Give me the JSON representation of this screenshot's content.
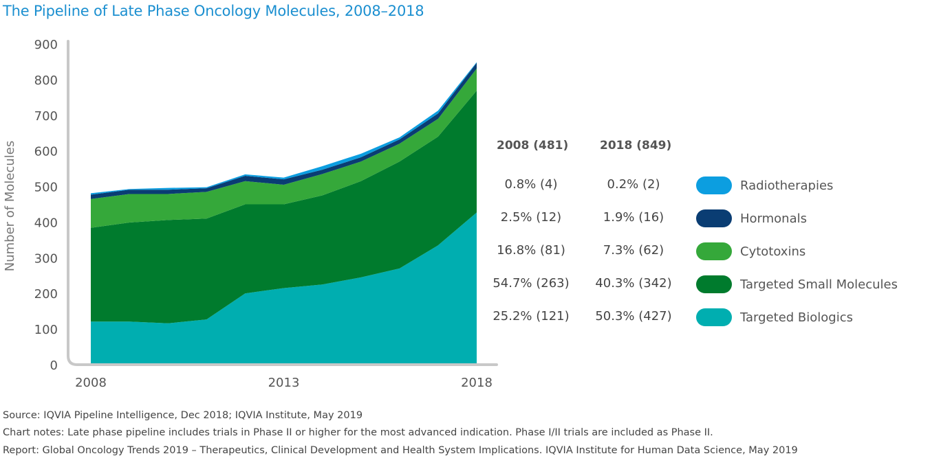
{
  "title": "The Pipeline of Late Phase Oncology Molecules, 2008–2018",
  "chart_data": {
    "type": "area",
    "stacked": true,
    "title": "The Pipeline of Late Phase Oncology Molecules, 2008–2018",
    "ylabel": "Number of Molecules",
    "xlabel": "",
    "ylim": [
      0,
      900
    ],
    "yticks": [
      0,
      100,
      200,
      300,
      400,
      500,
      600,
      700,
      800,
      900
    ],
    "xtick_labels": [
      "2008",
      "2013",
      "2018"
    ],
    "x": [
      2008,
      2009,
      2010,
      2011,
      2012,
      2013,
      2014,
      2015,
      2016,
      2017,
      2018
    ],
    "series": [
      {
        "name": "Targeted Biologics",
        "color": "#00aeb0",
        "values": [
          121,
          121,
          116,
          127,
          200,
          215,
          225,
          245,
          270,
          335,
          427
        ]
      },
      {
        "name": "Targeted Small Molecules",
        "color": "#007b2d",
        "values": [
          263,
          278,
          290,
          283,
          250,
          235,
          250,
          270,
          300,
          305,
          342
        ]
      },
      {
        "name": "Cytotoxins",
        "color": "#35a83a",
        "values": [
          81,
          80,
          73,
          75,
          65,
          55,
          60,
          55,
          50,
          50,
          62
        ]
      },
      {
        "name": "Hormonals",
        "color": "#0a3d73",
        "values": [
          12,
          12,
          12,
          10,
          15,
          15,
          12,
          12,
          12,
          15,
          16
        ]
      },
      {
        "name": "Radiotherapies",
        "color": "#0c9ee0",
        "values": [
          4,
          2,
          5,
          3,
          4,
          5,
          10,
          10,
          6,
          8,
          2
        ]
      }
    ],
    "grid": false,
    "legend": "right"
  },
  "table": {
    "headers": [
      "2008 (481)",
      "2018 (849)"
    ],
    "rows": [
      {
        "c2008": "0.8% (4)",
        "c2018": "0.2% (2)",
        "label": "Radiotherapies",
        "color": "#0c9ee0"
      },
      {
        "c2008": "2.5% (12)",
        "c2018": "1.9% (16)",
        "label": "Hormonals",
        "color": "#0a3d73"
      },
      {
        "c2008": "16.8% (81)",
        "c2018": "7.3% (62)",
        "label": "Cytotoxins",
        "color": "#35a83a"
      },
      {
        "c2008": "54.7% (263)",
        "c2018": "40.3% (342)",
        "label": "Targeted Small Molecules",
        "color": "#007b2d"
      },
      {
        "c2008": "25.2% (121)",
        "c2018": "50.3% (427)",
        "label": "Targeted Biologics",
        "color": "#00aeb0"
      }
    ]
  },
  "footnotes": {
    "source": "Source: IQVIA Pipeline Intelligence, Dec 2018; IQVIA Institute, May 2019",
    "notes": "Chart notes: Late phase pipeline includes trials in Phase II or higher for the most advanced indication. Phase I/II trials are included as Phase II.",
    "report": "Report: Global Oncology Trends 2019 – Therapeutics, Clinical Development and Health System Implications. IQVIA Institute for Human Data Science, May 2019"
  }
}
